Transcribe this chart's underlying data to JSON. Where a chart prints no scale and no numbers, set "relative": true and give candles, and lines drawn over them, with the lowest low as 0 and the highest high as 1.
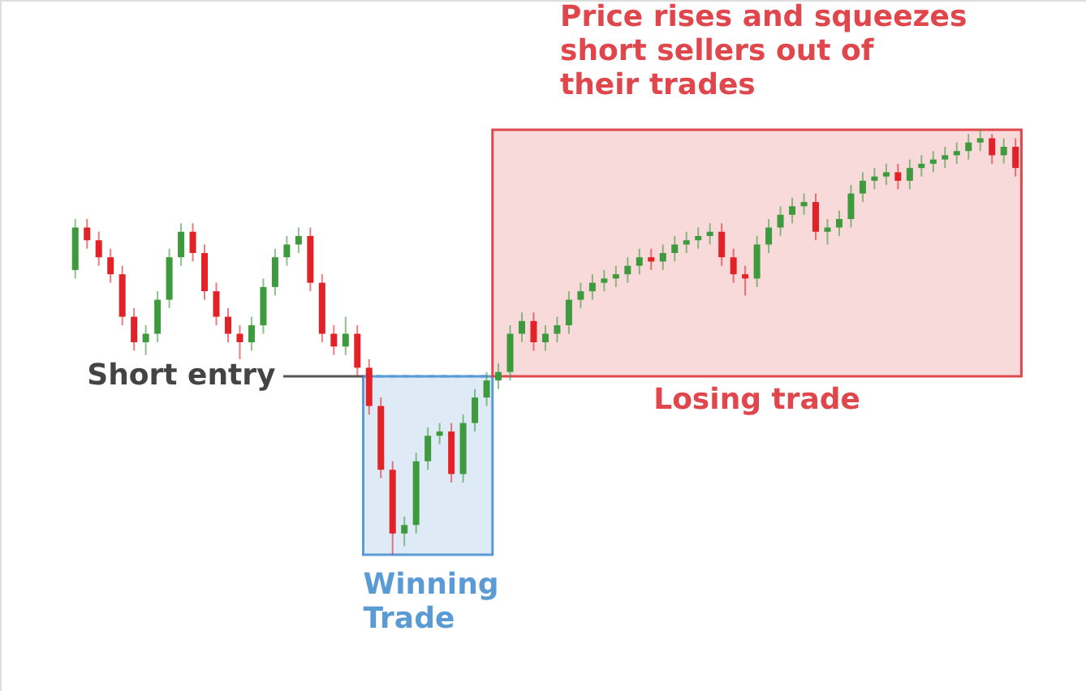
{
  "chart_data": {
    "type": "candlestick",
    "relative": true,
    "categories": [
      null,
      null,
      null,
      null,
      null,
      null,
      null,
      null,
      null,
      null,
      null,
      null,
      null,
      null,
      null,
      null,
      null,
      null,
      null,
      null,
      null,
      null,
      null,
      null,
      null,
      null,
      null,
      null,
      null,
      null,
      null,
      null,
      null,
      null,
      null,
      null,
      null,
      null,
      null,
      null,
      null,
      null,
      null,
      null,
      null,
      null,
      null,
      null,
      null,
      null,
      null,
      null,
      null,
      null,
      null,
      null,
      null,
      null,
      null,
      null,
      null,
      null,
      null,
      null,
      null,
      null,
      null,
      null,
      null,
      null,
      null,
      null,
      null,
      null,
      null,
      null,
      null,
      null,
      null,
      null,
      null
    ],
    "ohlc": [
      [
        0.67,
        0.79,
        0.65,
        0.77
      ],
      [
        0.77,
        0.79,
        0.72,
        0.74
      ],
      [
        0.74,
        0.76,
        0.68,
        0.7
      ],
      [
        0.7,
        0.72,
        0.64,
        0.66
      ],
      [
        0.66,
        0.68,
        0.54,
        0.56
      ],
      [
        0.56,
        0.58,
        0.48,
        0.5
      ],
      [
        0.5,
        0.54,
        0.47,
        0.52
      ],
      [
        0.52,
        0.62,
        0.5,
        0.6
      ],
      [
        0.6,
        0.72,
        0.58,
        0.7
      ],
      [
        0.7,
        0.78,
        0.68,
        0.76
      ],
      [
        0.76,
        0.78,
        0.69,
        0.71
      ],
      [
        0.71,
        0.73,
        0.6,
        0.62
      ],
      [
        0.62,
        0.64,
        0.54,
        0.56
      ],
      [
        0.56,
        0.58,
        0.5,
        0.52
      ],
      [
        0.52,
        0.54,
        0.46,
        0.5
      ],
      [
        0.5,
        0.56,
        0.48,
        0.54
      ],
      [
        0.54,
        0.65,
        0.52,
        0.63
      ],
      [
        0.63,
        0.72,
        0.61,
        0.7
      ],
      [
        0.7,
        0.75,
        0.68,
        0.73
      ],
      [
        0.73,
        0.77,
        0.71,
        0.75
      ],
      [
        0.75,
        0.77,
        0.62,
        0.64
      ],
      [
        0.64,
        0.66,
        0.5,
        0.52
      ],
      [
        0.52,
        0.54,
        0.47,
        0.49
      ],
      [
        0.49,
        0.56,
        0.47,
        0.52
      ],
      [
        0.52,
        0.54,
        0.42,
        0.44
      ],
      [
        0.44,
        0.46,
        0.33,
        0.35
      ],
      [
        0.35,
        0.37,
        0.18,
        0.2
      ],
      [
        0.2,
        0.22,
        0,
        0.05
      ],
      [
        0.05,
        0.09,
        0.02,
        0.07
      ],
      [
        0.07,
        0.24,
        0.05,
        0.22
      ],
      [
        0.22,
        0.3,
        0.2,
        0.28
      ],
      [
        0.28,
        0.31,
        0.26,
        0.29
      ],
      [
        0.29,
        0.31,
        0.17,
        0.19
      ],
      [
        0.19,
        0.33,
        0.17,
        0.31
      ],
      [
        0.31,
        0.39,
        0.29,
        0.37
      ],
      [
        0.37,
        0.43,
        0.35,
        0.41
      ],
      [
        0.41,
        0.45,
        0.39,
        0.43
      ],
      [
        0.43,
        0.54,
        0.41,
        0.52
      ],
      [
        0.52,
        0.57,
        0.5,
        0.55
      ],
      [
        0.55,
        0.57,
        0.48,
        0.5
      ],
      [
        0.5,
        0.54,
        0.48,
        0.52
      ],
      [
        0.52,
        0.56,
        0.5,
        0.54
      ],
      [
        0.54,
        0.62,
        0.52,
        0.6
      ],
      [
        0.6,
        0.64,
        0.58,
        0.62
      ],
      [
        0.62,
        0.66,
        0.6,
        0.64
      ],
      [
        0.64,
        0.67,
        0.62,
        0.65
      ],
      [
        0.65,
        0.68,
        0.63,
        0.66
      ],
      [
        0.66,
        0.7,
        0.64,
        0.68
      ],
      [
        0.68,
        0.72,
        0.66,
        0.7
      ],
      [
        0.7,
        0.72,
        0.67,
        0.69
      ],
      [
        0.69,
        0.73,
        0.67,
        0.71
      ],
      [
        0.71,
        0.75,
        0.69,
        0.73
      ],
      [
        0.73,
        0.76,
        0.71,
        0.74
      ],
      [
        0.74,
        0.77,
        0.72,
        0.75
      ],
      [
        0.75,
        0.78,
        0.73,
        0.76
      ],
      [
        0.76,
        0.78,
        0.68,
        0.7
      ],
      [
        0.7,
        0.72,
        0.64,
        0.66
      ],
      [
        0.66,
        0.68,
        0.61,
        0.65
      ],
      [
        0.65,
        0.75,
        0.63,
        0.73
      ],
      [
        0.73,
        0.79,
        0.71,
        0.77
      ],
      [
        0.77,
        0.82,
        0.75,
        0.8
      ],
      [
        0.8,
        0.84,
        0.78,
        0.82
      ],
      [
        0.82,
        0.85,
        0.8,
        0.83
      ],
      [
        0.83,
        0.85,
        0.74,
        0.76
      ],
      [
        0.76,
        0.79,
        0.73,
        0.77
      ],
      [
        0.77,
        0.81,
        0.75,
        0.79
      ],
      [
        0.79,
        0.87,
        0.77,
        0.85
      ],
      [
        0.85,
        0.9,
        0.83,
        0.88
      ],
      [
        0.88,
        0.91,
        0.86,
        0.89
      ],
      [
        0.89,
        0.92,
        0.87,
        0.9
      ],
      [
        0.9,
        0.92,
        0.86,
        0.88
      ],
      [
        0.88,
        0.93,
        0.86,
        0.91
      ],
      [
        0.91,
        0.94,
        0.89,
        0.92
      ],
      [
        0.92,
        0.95,
        0.9,
        0.93
      ],
      [
        0.93,
        0.96,
        0.91,
        0.94
      ],
      [
        0.94,
        0.97,
        0.92,
        0.95
      ],
      [
        0.95,
        0.99,
        0.93,
        0.97
      ],
      [
        0.97,
        1,
        0.95,
        0.98
      ],
      [
        0.98,
        0.99,
        0.92,
        0.94
      ],
      [
        0.94,
        0.98,
        0.92,
        0.96
      ],
      [
        0.96,
        0.98,
        0.89,
        0.91
      ]
    ],
    "ref_lines": [
      {
        "axis": "y",
        "value": 0.42,
        "label": "Short entry",
        "line_style": "dashed",
        "color": "#5b9bd5"
      }
    ],
    "bands": [
      {
        "axis": "y",
        "from": 0,
        "to": 0.42,
        "label": "Winning Trade",
        "color": "#5b9bd5"
      },
      {
        "axis": "y",
        "from": 0.42,
        "to": 1,
        "label": "Losing trade",
        "color": "#e0474c"
      }
    ],
    "annotations": [
      "Price rises and squeezes short sellers out of their trades"
    ]
  }
}
